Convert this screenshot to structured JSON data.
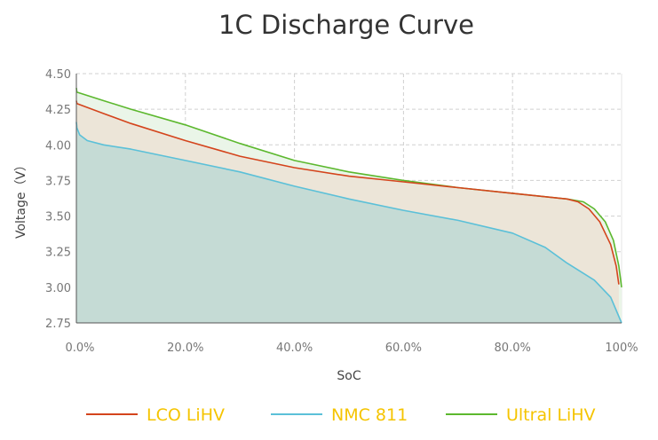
{
  "chart_data": {
    "type": "area",
    "title": "1C Discharge Curve",
    "xlabel": "SoC",
    "ylabel": "Voltage（V）",
    "xlim": [
      0,
      100
    ],
    "ylim": [
      2.75,
      4.5
    ],
    "x_ticks": [
      "0.0%",
      "20.0%",
      "40.0%",
      "60.0%",
      "80.0%",
      "100%"
    ],
    "x_tick_values": [
      0,
      20,
      40,
      60,
      80,
      100
    ],
    "y_ticks": [
      "2.75",
      "3.00",
      "3.25",
      "3.50",
      "3.75",
      "4.00",
      "4.25",
      "4.50"
    ],
    "y_tick_values": [
      2.75,
      3.0,
      3.25,
      3.5,
      3.75,
      4.0,
      4.25,
      4.5
    ],
    "grid": true,
    "legend_position": "bottom",
    "legend_text_color": "#f5c400",
    "series": [
      {
        "name": "Ultral LiHV",
        "color": "#5cb82e",
        "fill": "#eaf5e8",
        "x": [
          0,
          0.1,
          5,
          10,
          20,
          30,
          40,
          50,
          60,
          70,
          80,
          90,
          93,
          95,
          97,
          98.5,
          99.5,
          100
        ],
        "y": [
          4.4,
          4.37,
          4.31,
          4.25,
          4.14,
          4.01,
          3.89,
          3.81,
          3.75,
          3.7,
          3.66,
          3.62,
          3.6,
          3.55,
          3.46,
          3.33,
          3.15,
          3.0
        ]
      },
      {
        "name": "LCO LiHV",
        "color": "#d4441c",
        "fill": "#ece5d8",
        "x": [
          0,
          0.1,
          5,
          10,
          20,
          30,
          40,
          50,
          60,
          70,
          80,
          90,
          92,
          94,
          96,
          98,
          99,
          99.5
        ],
        "y": [
          4.31,
          4.29,
          4.22,
          4.15,
          4.03,
          3.92,
          3.84,
          3.78,
          3.74,
          3.7,
          3.66,
          3.62,
          3.6,
          3.55,
          3.46,
          3.3,
          3.15,
          3.02
        ]
      },
      {
        "name": "NMC 811",
        "color": "#5bc0d8",
        "fill": "#c5dbd5",
        "x": [
          0,
          0.1,
          0.6,
          2,
          5,
          10,
          20,
          30,
          40,
          50,
          60,
          70,
          80,
          86,
          90,
          95,
          98,
          100
        ],
        "y": [
          4.16,
          4.12,
          4.07,
          4.03,
          4.0,
          3.97,
          3.89,
          3.81,
          3.71,
          3.62,
          3.54,
          3.47,
          3.38,
          3.28,
          3.17,
          3.05,
          2.93,
          2.75
        ]
      }
    ]
  }
}
